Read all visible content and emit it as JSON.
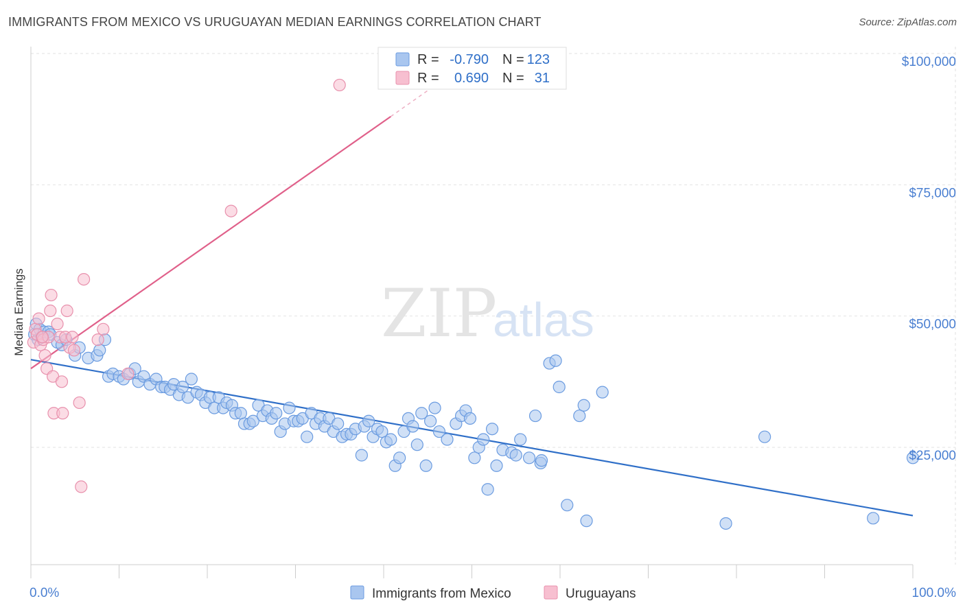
{
  "header": {
    "title": "IMMIGRANTS FROM MEXICO VS URUGUAYAN MEDIAN EARNINGS CORRELATION CHART",
    "source": "Source: ZipAtlas.com"
  },
  "watermark": {
    "zip": "ZIP",
    "atlas": "atlas"
  },
  "stats": [
    {
      "r_label": "R =",
      "r_value": "-0.790",
      "n_label": "N =",
      "n_value": "123",
      "color": "#a9c6ef",
      "stroke": "#6a9be0"
    },
    {
      "r_label": "R =",
      "r_value": "0.690",
      "n_label": "N =",
      "n_value": "31",
      "color": "#f7bfd0",
      "stroke": "#e890ac"
    }
  ],
  "legend": [
    {
      "label": "Immigrants from Mexico",
      "color": "#a9c6ef",
      "stroke": "#6a9be0"
    },
    {
      "label": "Uruguayans",
      "color": "#f7bfd0",
      "stroke": "#e890ac"
    }
  ],
  "chart_data": {
    "type": "scatter",
    "title": "IMMIGRANTS FROM MEXICO VS URUGUAYAN MEDIAN EARNINGS CORRELATION CHART",
    "xlabel": "",
    "ylabel": "Median Earnings",
    "xlim": [
      0,
      100
    ],
    "ylim": [
      0,
      105000
    ],
    "x_tick_labels": [
      "0.0%",
      "100.0%"
    ],
    "y_ticks": [
      {
        "value": 25000,
        "label": "$25,000"
      },
      {
        "value": 50000,
        "label": "$50,000"
      },
      {
        "value": 75000,
        "label": "$75,000"
      },
      {
        "value": 100000,
        "label": "$100,000"
      }
    ],
    "series": [
      {
        "name": "Immigrants from Mexico",
        "color": "#6a9be0",
        "fill": "#a9c6ef",
        "trend": {
          "x0": 0,
          "y0": 41700,
          "x1": 100,
          "y1": 12000,
          "color": "#2f6fc8"
        },
        "points": [
          [
            0.4,
            46500
          ],
          [
            0.6,
            48500
          ],
          [
            0.8,
            45500
          ],
          [
            1.0,
            47500
          ],
          [
            1.2,
            46000
          ],
          [
            1.5,
            47000
          ],
          [
            2.0,
            47000
          ],
          [
            2.2,
            46500
          ],
          [
            3.0,
            45000
          ],
          [
            3.5,
            44500
          ],
          [
            4.0,
            45500
          ],
          [
            5.0,
            42500
          ],
          [
            5.5,
            44000
          ],
          [
            6.5,
            42000
          ],
          [
            7.5,
            42500
          ],
          [
            7.8,
            43500
          ],
          [
            8.4,
            45500
          ],
          [
            8.8,
            38500
          ],
          [
            9.3,
            39000
          ],
          [
            10.0,
            38500
          ],
          [
            10.5,
            38000
          ],
          [
            11.2,
            39000
          ],
          [
            11.8,
            40000
          ],
          [
            12.2,
            37500
          ],
          [
            12.8,
            38500
          ],
          [
            13.5,
            37000
          ],
          [
            14.2,
            38000
          ],
          [
            14.8,
            36500
          ],
          [
            15.2,
            36500
          ],
          [
            15.8,
            36000
          ],
          [
            16.2,
            37000
          ],
          [
            16.8,
            35000
          ],
          [
            17.2,
            36500
          ],
          [
            17.8,
            34500
          ],
          [
            18.2,
            38000
          ],
          [
            18.8,
            35500
          ],
          [
            19.3,
            35000
          ],
          [
            19.8,
            33500
          ],
          [
            20.3,
            34500
          ],
          [
            20.8,
            32500
          ],
          [
            21.3,
            34500
          ],
          [
            21.8,
            32500
          ],
          [
            22.2,
            33500
          ],
          [
            22.8,
            33000
          ],
          [
            23.2,
            31500
          ],
          [
            23.8,
            31500
          ],
          [
            24.2,
            29500
          ],
          [
            24.8,
            29500
          ],
          [
            25.2,
            30000
          ],
          [
            25.8,
            33000
          ],
          [
            26.3,
            31000
          ],
          [
            26.8,
            32000
          ],
          [
            27.3,
            30500
          ],
          [
            27.8,
            31500
          ],
          [
            28.3,
            28000
          ],
          [
            28.8,
            29500
          ],
          [
            29.3,
            32500
          ],
          [
            29.8,
            30000
          ],
          [
            30.3,
            30000
          ],
          [
            30.8,
            30500
          ],
          [
            31.3,
            27000
          ],
          [
            31.8,
            31500
          ],
          [
            32.3,
            29500
          ],
          [
            32.8,
            30500
          ],
          [
            33.3,
            29000
          ],
          [
            33.8,
            30500
          ],
          [
            34.3,
            28000
          ],
          [
            34.8,
            29500
          ],
          [
            35.3,
            27000
          ],
          [
            35.8,
            27500
          ],
          [
            36.3,
            27500
          ],
          [
            36.8,
            28500
          ],
          [
            37.5,
            23500
          ],
          [
            37.8,
            29000
          ],
          [
            38.3,
            30000
          ],
          [
            38.8,
            27000
          ],
          [
            39.3,
            28500
          ],
          [
            39.8,
            28000
          ],
          [
            40.3,
            26000
          ],
          [
            40.8,
            26500
          ],
          [
            41.3,
            21500
          ],
          [
            41.8,
            23000
          ],
          [
            42.3,
            28000
          ],
          [
            42.8,
            30500
          ],
          [
            43.3,
            29000
          ],
          [
            43.8,
            25500
          ],
          [
            44.3,
            31500
          ],
          [
            44.8,
            21500
          ],
          [
            45.3,
            30000
          ],
          [
            45.8,
            32500
          ],
          [
            46.3,
            28000
          ],
          [
            47.2,
            26500
          ],
          [
            48.2,
            29500
          ],
          [
            48.8,
            31000
          ],
          [
            49.3,
            32000
          ],
          [
            49.8,
            30500
          ],
          [
            50.3,
            23000
          ],
          [
            50.8,
            25000
          ],
          [
            51.3,
            26500
          ],
          [
            51.8,
            17000
          ],
          [
            52.3,
            28500
          ],
          [
            52.8,
            21500
          ],
          [
            53.5,
            24500
          ],
          [
            54.5,
            24000
          ],
          [
            55.0,
            23500
          ],
          [
            55.5,
            26500
          ],
          [
            56.5,
            23000
          ],
          [
            57.2,
            31000
          ],
          [
            57.8,
            22000
          ],
          [
            57.9,
            22500
          ],
          [
            58.8,
            41000
          ],
          [
            59.5,
            41500
          ],
          [
            59.9,
            36500
          ],
          [
            60.8,
            14000
          ],
          [
            62.2,
            31000
          ],
          [
            62.7,
            33000
          ],
          [
            63.0,
            11000
          ],
          [
            64.8,
            35500
          ],
          [
            78.8,
            10500
          ],
          [
            83.2,
            27000
          ],
          [
            95.5,
            11500
          ],
          [
            100.0,
            23000
          ]
        ]
      },
      {
        "name": "Uruguayans",
        "color": "#e890ac",
        "fill": "#f7bfd0",
        "trend": {
          "x0": 0,
          "y0": 40000,
          "x1": 40.8,
          "y1": 88000,
          "dash_x1": 48,
          "dash_y1": 96500,
          "color": "#e0608a"
        },
        "points": [
          [
            0.3,
            45000
          ],
          [
            0.5,
            47500
          ],
          [
            0.7,
            46500
          ],
          [
            0.9,
            49500
          ],
          [
            1.1,
            44500
          ],
          [
            1.4,
            45500
          ],
          [
            1.6,
            42500
          ],
          [
            1.8,
            40000
          ],
          [
            2.0,
            46000
          ],
          [
            2.2,
            51000
          ],
          [
            2.3,
            54000
          ],
          [
            2.5,
            38500
          ],
          [
            2.6,
            31500
          ],
          [
            3.0,
            48500
          ],
          [
            3.3,
            46000
          ],
          [
            3.5,
            37500
          ],
          [
            3.6,
            31500
          ],
          [
            3.9,
            46000
          ],
          [
            4.1,
            51000
          ],
          [
            4.4,
            44000
          ],
          [
            4.7,
            46000
          ],
          [
            4.9,
            43500
          ],
          [
            5.5,
            33500
          ],
          [
            5.7,
            17500
          ],
          [
            6.0,
            57000
          ],
          [
            7.6,
            45500
          ],
          [
            8.2,
            47500
          ],
          [
            11.0,
            39000
          ],
          [
            22.7,
            70000
          ],
          [
            35.0,
            94000
          ],
          [
            1.3,
            46000
          ]
        ]
      }
    ]
  }
}
